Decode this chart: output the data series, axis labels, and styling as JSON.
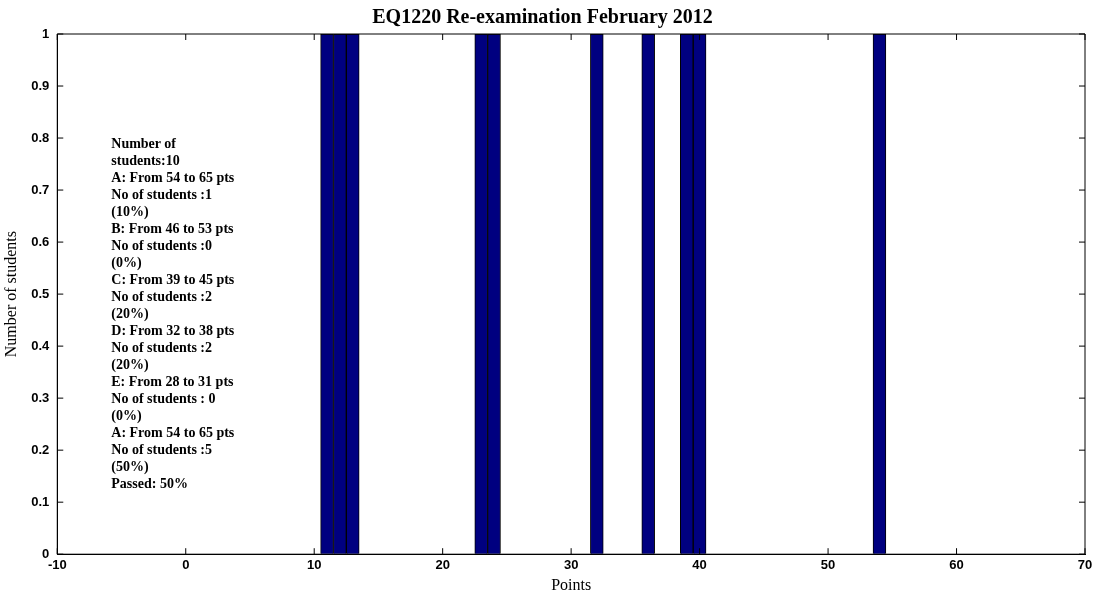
{
  "chart_data": {
    "type": "bar",
    "title": "EQ1220 Re-examination February 2012",
    "xlabel": "Points",
    "ylabel": "Number of students",
    "x": [
      11,
      12,
      13,
      23,
      24,
      32,
      36,
      39,
      40,
      54
    ],
    "values": [
      1,
      1,
      1,
      1,
      1,
      1,
      1,
      1,
      1,
      1
    ],
    "color": "#000080",
    "xlim": [
      -10,
      70
    ],
    "xticks": [
      -10,
      0,
      10,
      20,
      30,
      40,
      50,
      60,
      70
    ],
    "ylim": [
      0,
      1
    ],
    "yticks": [
      0,
      0.1,
      0.2,
      0.3,
      0.4,
      0.5,
      0.6,
      0.7,
      0.8,
      0.9,
      1
    ],
    "grid": false,
    "legend": false,
    "annotations": [
      "Number of",
      "students:10",
      "A: From 54 to 65 pts",
      "No of students :1",
      "(10%)",
      "B: From 46 to 53 pts",
      "No of students :0",
      "(0%)",
      "C: From 39 to 45 pts",
      "No of students :2",
      "(20%)",
      "D: From 32 to 38 pts",
      "No of students :2",
      "(20%)",
      "E: From 28 to 31 pts",
      "No of students : 0",
      "(0%)",
      "A: From 54 to 65 pts",
      "No of students :5",
      "(50%)",
      "Passed: 50%"
    ]
  }
}
